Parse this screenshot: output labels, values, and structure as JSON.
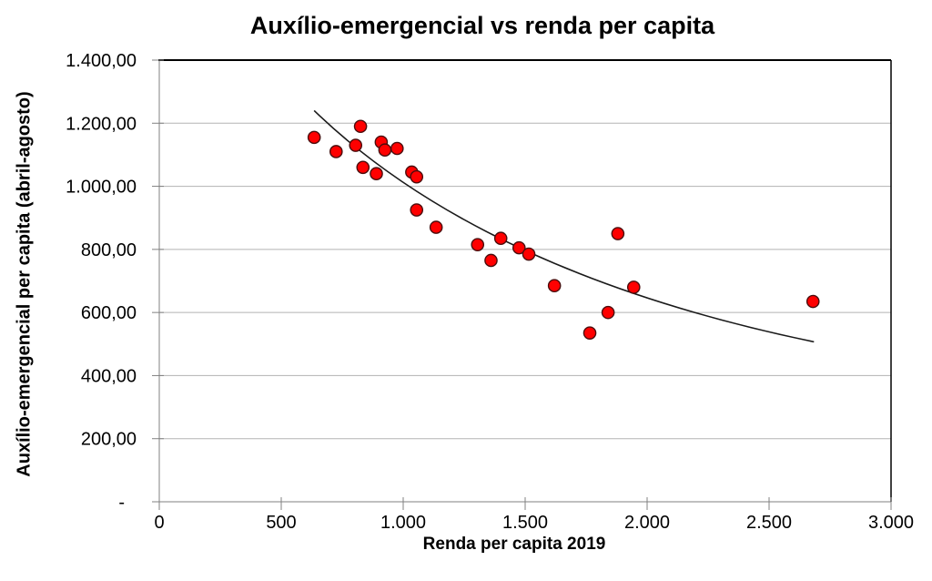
{
  "chart_data": {
    "type": "scatter",
    "title": "Auxílio-emergencial vs renda per capita",
    "xlabel": "Renda per capita 2019",
    "ylabel": "Auxílio-emergencial per capita (abril-agosto)",
    "xlim": [
      0,
      3000
    ],
    "ylim": [
      0,
      1400
    ],
    "x_ticks": [
      0,
      500,
      1000,
      1500,
      2000,
      2500,
      3000
    ],
    "x_tick_labels": [
      "0",
      "500",
      "1.000",
      "1.500",
      "2.000",
      "2.500",
      "3.000"
    ],
    "y_ticks": [
      0,
      200,
      400,
      600,
      800,
      1000,
      1200,
      1400
    ],
    "y_tick_labels": [
      "-",
      "200,00",
      "400,00",
      "600,00",
      "800,00",
      "1.000,00",
      "1.200,00",
      "1.400,00"
    ],
    "grid": "horizontal-only",
    "legend": "none",
    "colors": {
      "marker_fill": "#ff0000",
      "marker_stroke": "#4a0d0d",
      "gridline": "#b3b3b3",
      "axis": "#808080",
      "border": "#000000",
      "trendline": "#1a1a1a",
      "text": "#000000"
    },
    "points": [
      [
        635,
        1155
      ],
      [
        725,
        1110
      ],
      [
        805,
        1130
      ],
      [
        825,
        1190
      ],
      [
        835,
        1060
      ],
      [
        890,
        1040
      ],
      [
        910,
        1140
      ],
      [
        925,
        1115
      ],
      [
        975,
        1120
      ],
      [
        1035,
        1045
      ],
      [
        1055,
        1030
      ],
      [
        1055,
        925
      ],
      [
        1135,
        870
      ],
      [
        1305,
        815
      ],
      [
        1360,
        765
      ],
      [
        1400,
        835
      ],
      [
        1475,
        805
      ],
      [
        1515,
        785
      ],
      [
        1620,
        685
      ],
      [
        1765,
        535
      ],
      [
        1840,
        600
      ],
      [
        1880,
        850
      ],
      [
        1945,
        680
      ],
      [
        2680,
        635
      ]
    ],
    "trendline": {
      "kind": "decreasing-convex-fit",
      "bezier_p0": [
        635,
        1240
      ],
      "bezier_c": [
        1323,
        726
      ],
      "bezier_p2": [
        2684,
        507
      ]
    }
  }
}
